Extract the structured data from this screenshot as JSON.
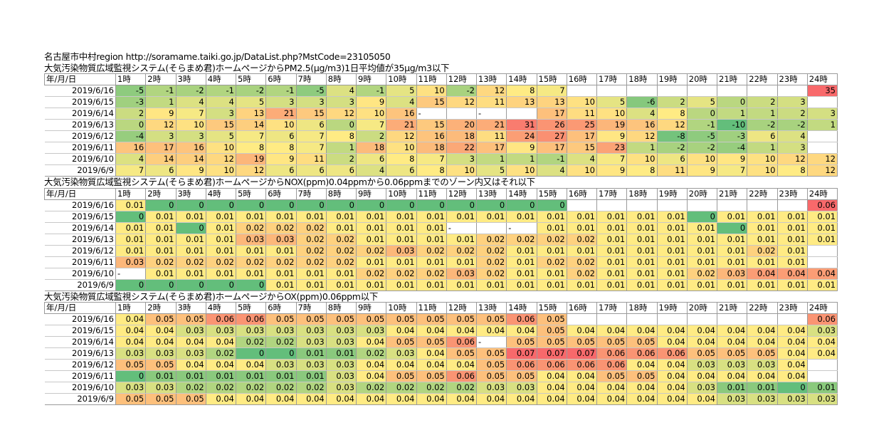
{
  "title_line": "名古屋市中村region http://soramame.taiki.go.jp/DataList.php?MstCode=23105050",
  "hours": [
    "1時",
    "2時",
    "3時",
    "4時",
    "5時",
    "6時",
    "7時",
    "8時",
    "9時",
    "10時",
    "11時",
    "12時",
    "13時",
    "14時",
    "15時",
    "16時",
    "17時",
    "18時",
    "19時",
    "20時",
    "21時",
    "22時",
    "23時",
    "24時"
  ],
  "date_header": "年/月/日",
  "dates": [
    "2019/6/16",
    "2019/6/15",
    "2019/6/14",
    "2019/6/13",
    "2019/6/12",
    "2019/6/11",
    "2019/6/10",
    "2019/6/9"
  ],
  "sections": [
    {
      "title": "大気汚染物質広域監視システム(そらまめ君)ホームページからPM2.5(μg/m3)1日平均値が35μg/m3以下",
      "metric": "pm25",
      "rows": [
        [
          "-5",
          "-1",
          "-2",
          "-1",
          "-2",
          "-1",
          "-5",
          "4",
          "-1",
          "5",
          "10",
          "-2",
          "12",
          "8",
          "7",
          "",
          "",
          "",
          "",
          "",
          "",
          "",
          "",
          "35"
        ],
        [
          "-3",
          "1",
          "4",
          "4",
          "5",
          "3",
          "3",
          "3",
          "9",
          "4",
          "15",
          "12",
          "11",
          "13",
          "13",
          "10",
          "5",
          "-6",
          "2",
          "5",
          "0",
          "2",
          "3",
          ""
        ],
        [
          "2",
          "9",
          "7",
          "3",
          "13",
          "21",
          "15",
          "12",
          "10",
          "16",
          "-",
          "",
          "-",
          "",
          "17",
          "11",
          "10",
          "4",
          "8",
          "0",
          "1",
          "1",
          "2",
          "3"
        ],
        [
          "0",
          "12",
          "10",
          "15",
          "14",
          "10",
          "6",
          "0",
          "7",
          "21",
          "15",
          "20",
          "21",
          "31",
          "26",
          "25",
          "19",
          "16",
          "12",
          "-1",
          "-10",
          "-2",
          "-2",
          "1"
        ],
        [
          "-4",
          "3",
          "3",
          "5",
          "7",
          "6",
          "7",
          "8",
          "2",
          "12",
          "16",
          "18",
          "11",
          "24",
          "27",
          "17",
          "9",
          "12",
          "-8",
          "-5",
          "-3",
          "6",
          "4",
          ""
        ],
        [
          "16",
          "17",
          "16",
          "10",
          "8",
          "8",
          "7",
          "1",
          "18",
          "10",
          "18",
          "22",
          "17",
          "9",
          "17",
          "15",
          "23",
          "1",
          "-2",
          "-2",
          "-4",
          "1",
          "3",
          ""
        ],
        [
          "4",
          "14",
          "14",
          "12",
          "19",
          "9",
          "11",
          "2",
          "6",
          "8",
          "7",
          "3",
          "1",
          "1",
          "-1",
          "4",
          "7",
          "10",
          "6",
          "10",
          "9",
          "10",
          "12",
          "12"
        ],
        [
          "7",
          "6",
          "9",
          "10",
          "12",
          "6",
          "6",
          "6",
          "4",
          "6",
          "8",
          "10",
          "5",
          "10",
          "4",
          "10",
          "9",
          "8",
          "11",
          "9",
          "7",
          "10",
          "8",
          "12"
        ]
      ]
    },
    {
      "title": "大気汚染物質広域監視システム(そらまめ君)ホームページからNOX(ppm)0.04ppmから0.06ppmまでのゾーン内又はそれ以下",
      "metric": "nox",
      "rows": [
        [
          "0.01",
          "0",
          "0",
          "0",
          "0",
          "0",
          "0",
          "0",
          "0",
          "0",
          "0",
          "0",
          "0",
          "0",
          "0",
          "",
          "",
          "",
          "",
          "",
          "",
          "",
          "",
          "0.06"
        ],
        [
          "0",
          "0.01",
          "0.01",
          "0.01",
          "0.01",
          "0.01",
          "0.01",
          "0.01",
          "0.01",
          "0.01",
          "0.01",
          "0.01",
          "0.01",
          "0.01",
          "0.01",
          "0.01",
          "0.01",
          "0.01",
          "0.01",
          "0",
          "0.01",
          "0.01",
          "0.01",
          "0.01"
        ],
        [
          "0.01",
          "0.01",
          "0",
          "0.01",
          "0.02",
          "0.02",
          "0.02",
          "0.01",
          "0.01",
          "0.01",
          "0.01",
          "-",
          "",
          "-",
          "0.01",
          "0.01",
          "0.01",
          "0.01",
          "0.01",
          "0.01",
          "0",
          "0.01",
          "0.01",
          "0.01"
        ],
        [
          "0.01",
          "0.01",
          "0.01",
          "0.01",
          "0.03",
          "0.03",
          "0.02",
          "0.02",
          "0.01",
          "0.01",
          "0.01",
          "0.01",
          "0.02",
          "0.02",
          "0.02",
          "0.02",
          "0.01",
          "0.01",
          "0.01",
          "0.01",
          "0.01",
          "0.01",
          "0.01",
          "0.01"
        ],
        [
          "0.01",
          "0.01",
          "0.01",
          "0.01",
          "0.01",
          "0.01",
          "0.02",
          "0.02",
          "0.02",
          "0.03",
          "0.02",
          "0.02",
          "0.02",
          "0.01",
          "0.01",
          "0.01",
          "0.01",
          "0.01",
          "0.01",
          "0.01",
          "0.01",
          "0.02",
          "0.01",
          ""
        ],
        [
          "0.03",
          "0.02",
          "0.02",
          "0.02",
          "0.02",
          "0.02",
          "0.02",
          "0.02",
          "0.01",
          "0.01",
          "0.01",
          "0.01",
          "0.02",
          "0.01",
          "0.02",
          "0.02",
          "0.01",
          "0.01",
          "0.01",
          "0.01",
          "0.01",
          "0.01",
          "0.01",
          ""
        ],
        [
          "-",
          "0.01",
          "0.01",
          "0.01",
          "0.01",
          "0.01",
          "0.01",
          "0.01",
          "0.02",
          "0.02",
          "0.02",
          "0.03",
          "0.02",
          "0.01",
          "0.01",
          "0.02",
          "0.01",
          "0.01",
          "0.01",
          "0.02",
          "0.03",
          "0.04",
          "0.04",
          "0.04"
        ],
        [
          "0",
          "0",
          "0",
          "0",
          "0",
          "0.01",
          "0.01",
          "0.01",
          "0.01",
          "0.01",
          "0.01",
          "0.01",
          "0.01",
          "0.01",
          "0.01",
          "0.01",
          "0.01",
          "0.01",
          "0.01",
          "0.01",
          "0.01",
          "0.01",
          "0.01",
          "0.01"
        ]
      ]
    },
    {
      "title": "大気汚染物質広域監視システム(そらまめ君)ホームページからOX(ppm)0.06ppm以下",
      "metric": "ox",
      "rows": [
        [
          "0.04",
          "0.05",
          "0.05",
          "0.06",
          "0.06",
          "0.05",
          "0.05",
          "0.05",
          "0.05",
          "0.05",
          "0.05",
          "0.05",
          "0.05",
          "0.06",
          "0.05",
          "",
          "",
          "",
          "",
          "",
          "",
          "",
          "",
          "0.06"
        ],
        [
          "0.04",
          "0.04",
          "0.03",
          "0.03",
          "0.03",
          "0.03",
          "0.03",
          "0.03",
          "0.03",
          "0.04",
          "0.04",
          "0.04",
          "0.04",
          "0.04",
          "0.05",
          "0.04",
          "0.04",
          "0.04",
          "0.04",
          "0.04",
          "0.04",
          "0.04",
          "0.04",
          "0.03"
        ],
        [
          "0.04",
          "0.04",
          "0.04",
          "0.04",
          "0.02",
          "0.02",
          "0.03",
          "0.03",
          "0.04",
          "0.05",
          "0.05",
          "0.06",
          "-",
          "0.05",
          "0.05",
          "0.05",
          "0.05",
          "0.05",
          "0.04",
          "0.04",
          "0.04",
          "0.04",
          "0.04",
          "0.04"
        ],
        [
          "0.03",
          "0.03",
          "0.03",
          "0.02",
          "0",
          "0",
          "0.01",
          "0.01",
          "0.02",
          "0.03",
          "0.04",
          "0.05",
          "0.05",
          "0.07",
          "0.07",
          "0.07",
          "0.06",
          "0.06",
          "0.06",
          "0.05",
          "0.05",
          "0.05",
          "0.04",
          "0.04"
        ],
        [
          "0.05",
          "0.05",
          "0.04",
          "0.04",
          "0.04",
          "0.03",
          "0.03",
          "0.03",
          "0.04",
          "0.04",
          "0.04",
          "0.04",
          "0.05",
          "0.06",
          "0.06",
          "0.06",
          "0.06",
          "0.04",
          "0.04",
          "0.03",
          "0.03",
          "0.03",
          "0.04",
          ""
        ],
        [
          "0",
          "0.01",
          "0.01",
          "0.01",
          "0.01",
          "0.01",
          "0.01",
          "0.03",
          "0.04",
          "0.05",
          "0.05",
          "0.06",
          "0.05",
          "0.05",
          "0.04",
          "0.04",
          "0.05",
          "0.05",
          "0.04",
          "0.04",
          "0.04",
          "0.04",
          "0.04",
          ""
        ],
        [
          "0.03",
          "0.03",
          "0.02",
          "0.02",
          "0.02",
          "0.02",
          "0.02",
          "0.03",
          "0.02",
          "0.02",
          "0.02",
          "0.02",
          "0.03",
          "0.03",
          "0.04",
          "0.04",
          "0.04",
          "0.04",
          "0.04",
          "0.03",
          "0.01",
          "0.01",
          "0",
          "0.01"
        ],
        [
          "0.05",
          "0.05",
          "0.05",
          "0.04",
          "0.04",
          "0.04",
          "0.04",
          "0.04",
          "0.04",
          "0.04",
          "0.04",
          "0.04",
          "0.04",
          "0.04",
          "0.04",
          "0.04",
          "0.04",
          "0.04",
          "0.04",
          "0.04",
          "0.03",
          "0.03",
          "0.03",
          "0.03"
        ]
      ]
    }
  ]
}
